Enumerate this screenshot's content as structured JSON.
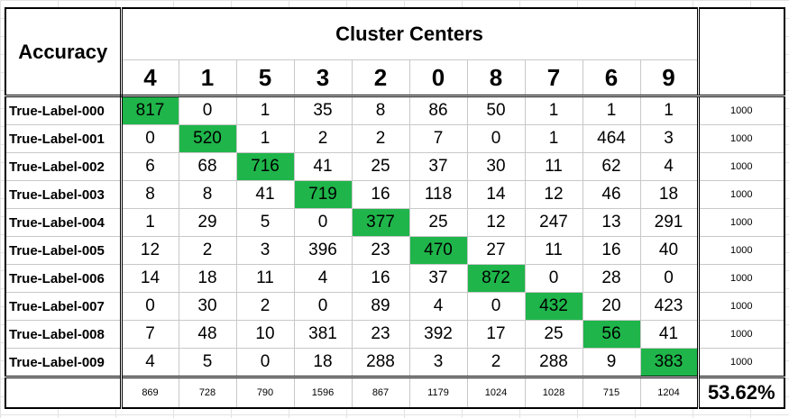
{
  "accuracy_label": "Accuracy",
  "cluster_centers_label": "Cluster Centers",
  "cluster_ids": [
    "4",
    "1",
    "5",
    "3",
    "2",
    "0",
    "8",
    "7",
    "6",
    "9"
  ],
  "rows": [
    {
      "label": "True-Label-000",
      "values": [
        "817",
        "0",
        "1",
        "35",
        "8",
        "86",
        "50",
        "1",
        "1",
        "1"
      ],
      "total": "1000"
    },
    {
      "label": "True-Label-001",
      "values": [
        "0",
        "520",
        "1",
        "2",
        "2",
        "7",
        "0",
        "1",
        "464",
        "3"
      ],
      "total": "1000"
    },
    {
      "label": "True-Label-002",
      "values": [
        "6",
        "68",
        "716",
        "41",
        "25",
        "37",
        "30",
        "11",
        "62",
        "4"
      ],
      "total": "1000"
    },
    {
      "label": "True-Label-003",
      "values": [
        "8",
        "8",
        "41",
        "719",
        "16",
        "118",
        "14",
        "12",
        "46",
        "18"
      ],
      "total": "1000"
    },
    {
      "label": "True-Label-004",
      "values": [
        "1",
        "29",
        "5",
        "0",
        "377",
        "25",
        "12",
        "247",
        "13",
        "291"
      ],
      "total": "1000"
    },
    {
      "label": "True-Label-005",
      "values": [
        "12",
        "2",
        "3",
        "396",
        "23",
        "470",
        "27",
        "11",
        "16",
        "40"
      ],
      "total": "1000"
    },
    {
      "label": "True-Label-006",
      "values": [
        "14",
        "18",
        "11",
        "4",
        "16",
        "37",
        "872",
        "0",
        "28",
        "0"
      ],
      "total": "1000"
    },
    {
      "label": "True-Label-007",
      "values": [
        "0",
        "30",
        "2",
        "0",
        "89",
        "4",
        "0",
        "432",
        "20",
        "423"
      ],
      "total": "1000"
    },
    {
      "label": "True-Label-008",
      "values": [
        "7",
        "48",
        "10",
        "381",
        "23",
        "392",
        "17",
        "25",
        "56",
        "41"
      ],
      "total": "1000"
    },
    {
      "label": "True-Label-009",
      "values": [
        "4",
        "5",
        "0",
        "18",
        "288",
        "3",
        "2",
        "288",
        "9",
        "383"
      ],
      "total": "1000"
    }
  ],
  "column_totals": [
    "869",
    "728",
    "790",
    "1596",
    "867",
    "1179",
    "1024",
    "1028",
    "715",
    "1204"
  ],
  "overall_accuracy": "53.62%",
  "colors": {
    "diagonal_highlight": "#1fb54a"
  }
}
